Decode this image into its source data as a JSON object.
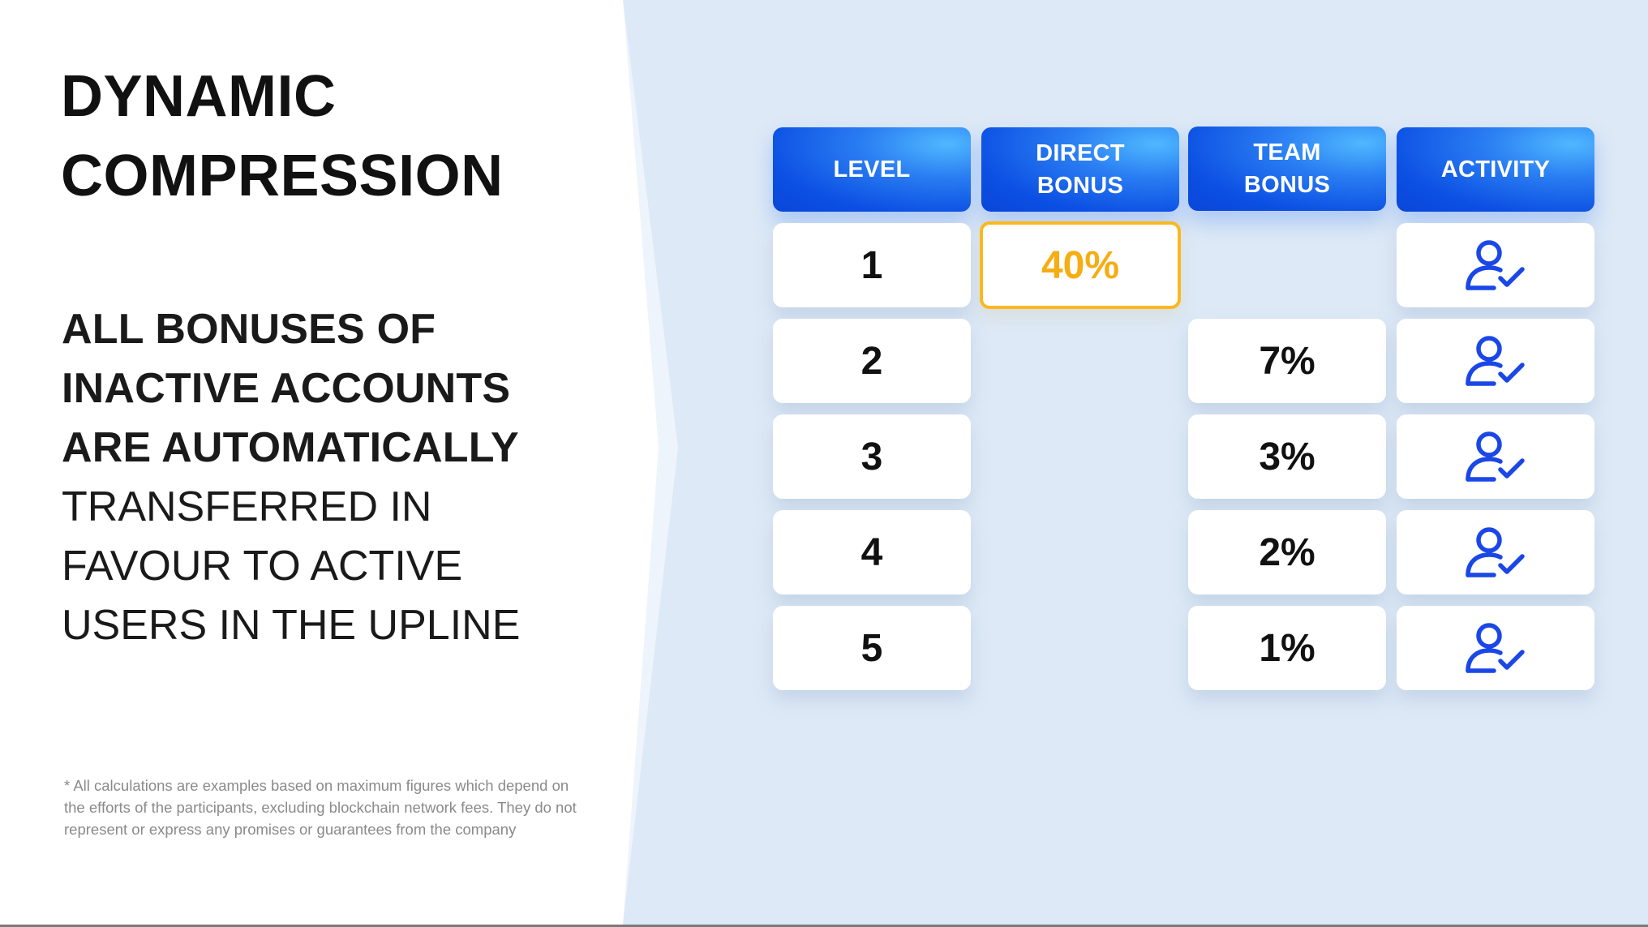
{
  "title": {
    "line1": "DYNAMIC",
    "line2": "COMPRESSION"
  },
  "description": {
    "bold_lines": [
      "ALL BONUSES OF",
      "INACTIVE ACCOUNTS",
      "ARE AUTOMATICALLY"
    ],
    "light_lines": [
      "TRANSFERRED IN",
      "FAVOUR TO ACTIVE",
      "USERS IN THE UPLINE"
    ]
  },
  "footnote": {
    "lines": [
      "* All calculations are examples based on maximum figures which depend on",
      "the efforts of the participants, excluding blockchain network fees. They do not",
      "represent or express any promises or guarantees from the company"
    ]
  },
  "table": {
    "headers": {
      "level": "LEVEL",
      "direct_line1": "DIRECT",
      "direct_line2": "BONUS",
      "team_line1": "TEAM",
      "team_line2": "BONUS",
      "activity": "ACTIVITY"
    },
    "rows": [
      {
        "level": "1",
        "direct": "40%",
        "team": ""
      },
      {
        "level": "2",
        "direct": "",
        "team": "7%"
      },
      {
        "level": "3",
        "direct": "",
        "team": "3%"
      },
      {
        "level": "4",
        "direct": "",
        "team": "2%"
      },
      {
        "level": "5",
        "direct": "",
        "team": "1%"
      }
    ],
    "activity_icon": "user-check-icon"
  },
  "colors": {
    "accent_blue": "#0b4fe3",
    "highlight_orange": "#f6ad12",
    "icon_blue": "#1a47e6"
  }
}
